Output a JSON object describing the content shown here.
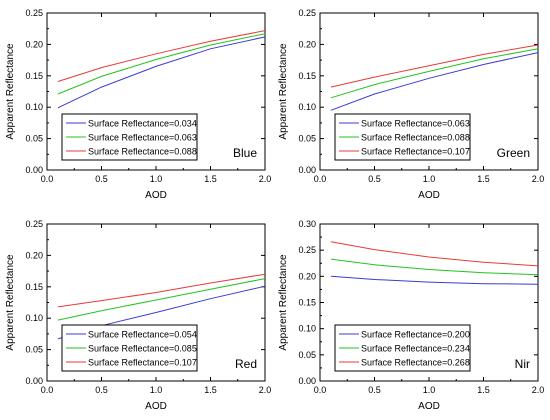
{
  "chart_data": [
    {
      "type": "line",
      "xlabel": "AOD",
      "ylabel": "Apparent Reflectance",
      "xlim": [
        0.0,
        2.0
      ],
      "ylim": [
        0.0,
        0.25
      ],
      "xticks": [
        "0.0",
        "0.5",
        "1.0",
        "1.5",
        "2.0"
      ],
      "yticks": [
        "0.00",
        "0.05",
        "0.10",
        "0.15",
        "0.20",
        "0.25"
      ],
      "band_label": "Blue",
      "legend_position": "bottom-left",
      "series": [
        {
          "name": "Surface Reflectance=0.034",
          "color": "#3b3bd6",
          "x": [
            0.1,
            0.5,
            1.0,
            1.5,
            2.0
          ],
          "y": [
            0.099,
            0.132,
            0.165,
            0.193,
            0.212
          ]
        },
        {
          "name": "Surface Reflectance=0.063",
          "color": "#22c41f",
          "x": [
            0.1,
            0.5,
            1.0,
            1.5,
            2.0
          ],
          "y": [
            0.121,
            0.149,
            0.176,
            0.199,
            0.217
          ]
        },
        {
          "name": "Surface Reflectance=0.088",
          "color": "#e83a3a",
          "x": [
            0.1,
            0.5,
            1.0,
            1.5,
            2.0
          ],
          "y": [
            0.141,
            0.163,
            0.185,
            0.205,
            0.222
          ]
        }
      ]
    },
    {
      "type": "line",
      "xlabel": "AOD",
      "ylabel": "Apparent Reflectance",
      "xlim": [
        0.0,
        2.0
      ],
      "ylim": [
        0.0,
        0.25
      ],
      "xticks": [
        "0.0",
        "0.5",
        "1.0",
        "1.5",
        "2.0"
      ],
      "yticks": [
        "0.00",
        "0.05",
        "0.10",
        "0.15",
        "0.20",
        "0.25"
      ],
      "band_label": "Green",
      "legend_position": "bottom-left",
      "series": [
        {
          "name": "Surface Reflectance=0.063",
          "color": "#3b3bd6",
          "x": [
            0.1,
            0.5,
            1.0,
            1.5,
            2.0
          ],
          "y": [
            0.095,
            0.121,
            0.146,
            0.168,
            0.187
          ]
        },
        {
          "name": "Surface Reflectance=0.088",
          "color": "#22c41f",
          "x": [
            0.1,
            0.5,
            1.0,
            1.5,
            2.0
          ],
          "y": [
            0.115,
            0.136,
            0.157,
            0.177,
            0.193
          ]
        },
        {
          "name": "Surface Reflectance=0.107",
          "color": "#e83a3a",
          "x": [
            0.1,
            0.5,
            1.0,
            1.5,
            2.0
          ],
          "y": [
            0.132,
            0.148,
            0.166,
            0.184,
            0.199
          ]
        }
      ]
    },
    {
      "type": "line",
      "xlabel": "AOD",
      "ylabel": "Apparent Reflectance",
      "xlim": [
        0.0,
        2.0
      ],
      "ylim": [
        0.0,
        0.25
      ],
      "xticks": [
        "0.0",
        "0.5",
        "1.0",
        "1.5",
        "2.0"
      ],
      "yticks": [
        "0.00",
        "0.05",
        "0.10",
        "0.15",
        "0.20",
        "0.25"
      ],
      "band_label": "Red",
      "legend_position": "bottom-left",
      "series": [
        {
          "name": "Surface Reflectance=0.054",
          "color": "#3b3bd6",
          "x": [
            0.1,
            0.5,
            1.0,
            1.5,
            2.0
          ],
          "y": [
            0.067,
            0.088,
            0.109,
            0.131,
            0.151
          ]
        },
        {
          "name": "Surface Reflectance=0.085",
          "color": "#22c41f",
          "x": [
            0.1,
            0.5,
            1.0,
            1.5,
            2.0
          ],
          "y": [
            0.097,
            0.112,
            0.129,
            0.146,
            0.163
          ]
        },
        {
          "name": "Surface Reflectance=0.107",
          "color": "#e83a3a",
          "x": [
            0.1,
            0.5,
            1.0,
            1.5,
            2.0
          ],
          "y": [
            0.118,
            0.128,
            0.141,
            0.156,
            0.17
          ]
        }
      ]
    },
    {
      "type": "line",
      "xlabel": "AOD",
      "ylabel": "Apparent Reflectance",
      "xlim": [
        0.0,
        2.0
      ],
      "ylim": [
        0.0,
        0.3
      ],
      "xticks": [
        "0.0",
        "0.5",
        "1.0",
        "1.5",
        "2.0"
      ],
      "yticks": [
        "0.00",
        "0.05",
        "0.10",
        "0.15",
        "0.20",
        "0.25",
        "0.30"
      ],
      "band_label": "Nir",
      "legend_position": "bottom-left",
      "series": [
        {
          "name": "Surface Reflectance=0.200",
          "color": "#3b3bd6",
          "x": [
            0.1,
            0.5,
            1.0,
            1.5,
            2.0
          ],
          "y": [
            0.2,
            0.194,
            0.189,
            0.186,
            0.185
          ]
        },
        {
          "name": "Surface Reflectance=0.234",
          "color": "#22c41f",
          "x": [
            0.1,
            0.5,
            1.0,
            1.5,
            2.0
          ],
          "y": [
            0.233,
            0.222,
            0.213,
            0.207,
            0.203
          ]
        },
        {
          "name": "Surface Reflectance=0.268",
          "color": "#e83a3a",
          "x": [
            0.1,
            0.5,
            1.0,
            1.5,
            2.0
          ],
          "y": [
            0.266,
            0.251,
            0.237,
            0.227,
            0.22
          ]
        }
      ]
    }
  ]
}
